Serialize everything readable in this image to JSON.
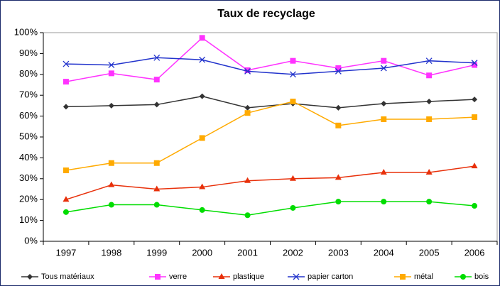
{
  "chart_data": {
    "type": "line",
    "title": "Taux de recyclage",
    "categories": [
      "1997",
      "1998",
      "1999",
      "2000",
      "2001",
      "2002",
      "2003",
      "2004",
      "2005",
      "2006"
    ],
    "ylim": [
      0,
      100
    ],
    "yticks": [
      {
        "value": 0,
        "label": "0%"
      },
      {
        "value": 10,
        "label": "10%"
      },
      {
        "value": 20,
        "label": "20%"
      },
      {
        "value": 30,
        "label": "30%"
      },
      {
        "value": 40,
        "label": "40%"
      },
      {
        "value": 50,
        "label": "50%"
      },
      {
        "value": 60,
        "label": "60%"
      },
      {
        "value": 70,
        "label": "70%"
      },
      {
        "value": 80,
        "label": "80%"
      },
      {
        "value": 90,
        "label": "90%"
      },
      {
        "value": 100,
        "label": "100%"
      }
    ],
    "grid": false,
    "legend": "bottom",
    "series": [
      {
        "name": "Tous matériaux",
        "color": "#333333",
        "marker": "diamond",
        "values": [
          64.5,
          65,
          65.5,
          69.5,
          64,
          66,
          64,
          66,
          67,
          68
        ]
      },
      {
        "name": "verre",
        "color": "#ff33ff",
        "marker": "square",
        "values": [
          76.5,
          80.5,
          77.5,
          97.5,
          82,
          86.5,
          83,
          86.5,
          79.5,
          84.5
        ]
      },
      {
        "name": "plastique",
        "color": "#e8300a",
        "marker": "triangle",
        "values": [
          20,
          27,
          25,
          26,
          29,
          30,
          30.5,
          33,
          33,
          36
        ]
      },
      {
        "name": "papier carton",
        "color": "#2233cc",
        "marker": "x",
        "values": [
          85,
          84.5,
          88,
          87,
          81.5,
          80,
          81.5,
          83,
          86.5,
          85.5
        ]
      },
      {
        "name": "métal",
        "color": "#ffaa00",
        "marker": "square",
        "values": [
          34,
          37.5,
          37.5,
          49.5,
          61.5,
          67,
          55.5,
          58.5,
          58.5,
          59.5
        ]
      },
      {
        "name": "bois",
        "color": "#00dd00",
        "marker": "circle",
        "values": [
          14,
          17.5,
          17.5,
          15,
          12.5,
          16,
          19,
          19,
          19,
          17
        ]
      }
    ]
  }
}
